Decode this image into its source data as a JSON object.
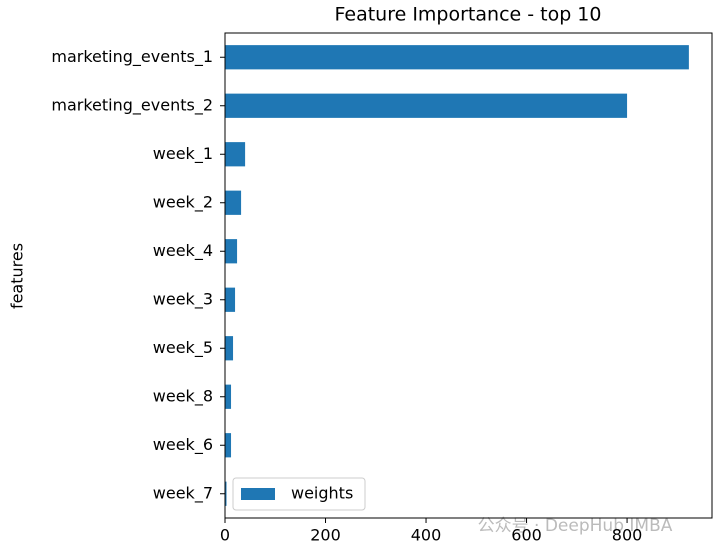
{
  "chart_data": {
    "type": "barh",
    "title": "Feature Importance - top 10",
    "ylabel": "features",
    "categories": [
      "marketing_events_1",
      "marketing_events_2",
      "week_1",
      "week_2",
      "week_4",
      "week_3",
      "week_5",
      "week_8",
      "week_6",
      "week_7"
    ],
    "series": [
      {
        "name": "weights",
        "color": "#1f77b4",
        "values": [
          923,
          800,
          40,
          32,
          24,
          20,
          16,
          12,
          12,
          3
        ]
      }
    ],
    "xlim": [
      0,
      969
    ],
    "xticks": [
      0,
      200,
      400,
      600,
      800
    ],
    "legend": "lower left"
  },
  "watermark": "公众号 · DeepHub IMBA"
}
